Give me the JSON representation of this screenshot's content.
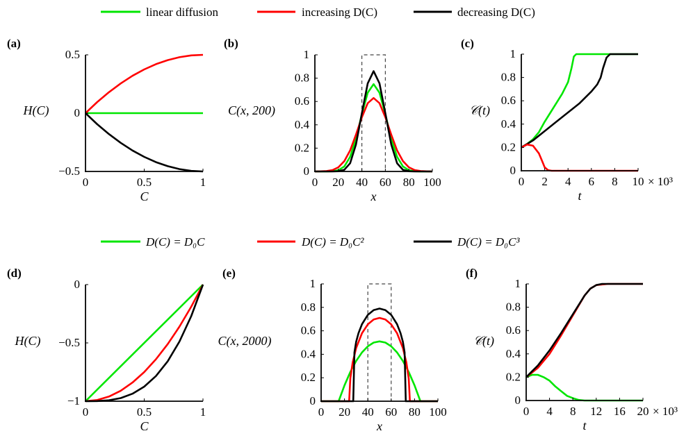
{
  "colors": {
    "green": "#00e600",
    "red": "#ff0000",
    "black": "#000000"
  },
  "legend_top": [
    {
      "label": "linear diffusion",
      "color": "#00e600"
    },
    {
      "label": "increasing D(C)",
      "color": "#ff0000"
    },
    {
      "label": "decreasing D(C)",
      "color": "#000000"
    }
  ],
  "legend_bottom": [
    {
      "label": "D(C) = D₀C",
      "color": "#00e600"
    },
    {
      "label": "D(C) = D₀C²",
      "color": "#ff0000"
    },
    {
      "label": "D(C) = D₀C³",
      "color": "#000000"
    }
  ],
  "chart_data": [
    {
      "panel": "(a)",
      "type": "line",
      "xlabel": "C",
      "ylabel": "H(C)",
      "xlim": [
        0,
        1
      ],
      "ylim": [
        -0.5,
        0.5
      ],
      "xticks": [
        0,
        0.5,
        1
      ],
      "xtick_labels": [
        "0",
        "0.5",
        "1"
      ],
      "yticks": [
        -0.5,
        0,
        0.5
      ],
      "ytick_labels": [
        "−0.5",
        "0",
        "0.5"
      ],
      "grid": false,
      "series": [
        {
          "color": "#00e600",
          "x": [
            0,
            1
          ],
          "y": [
            0,
            0
          ]
        },
        {
          "color": "#ff0000",
          "x": [
            0,
            0.1,
            0.2,
            0.3,
            0.4,
            0.5,
            0.6,
            0.7,
            0.8,
            0.9,
            1
          ],
          "y": [
            0,
            0.095,
            0.18,
            0.255,
            0.32,
            0.375,
            0.42,
            0.455,
            0.48,
            0.495,
            0.5
          ]
        },
        {
          "color": "#000000",
          "x": [
            0,
            0.1,
            0.2,
            0.3,
            0.4,
            0.5,
            0.6,
            0.7,
            0.8,
            0.9,
            1
          ],
          "y": [
            0,
            -0.095,
            -0.18,
            -0.255,
            -0.32,
            -0.375,
            -0.42,
            -0.455,
            -0.48,
            -0.495,
            -0.5
          ]
        }
      ]
    },
    {
      "panel": "(b)",
      "type": "line",
      "xlabel": "x",
      "ylabel": "C(x, 200)",
      "xlim": [
        0,
        100
      ],
      "ylim": [
        0,
        1
      ],
      "xticks": [
        0,
        20,
        40,
        60,
        80,
        100
      ],
      "xtick_labels": [
        "0",
        "20",
        "40",
        "60",
        "80",
        "100"
      ],
      "yticks": [
        0,
        0.2,
        0.4,
        0.6,
        0.8,
        1
      ],
      "ytick_labels": [
        "0",
        "0.2",
        "0.4",
        "0.6",
        "0.8",
        "1"
      ],
      "grid": false,
      "initial_box": {
        "x": [
          40,
          60
        ],
        "height": 1
      },
      "series": [
        {
          "color": "#00e600",
          "x": [
            0,
            10,
            15,
            20,
            25,
            30,
            35,
            40,
            45,
            50,
            55,
            60,
            65,
            70,
            75,
            80,
            85,
            90,
            100
          ],
          "y": [
            0,
            0.0003,
            0.002,
            0.0105,
            0.042,
            0.125,
            0.28,
            0.49,
            0.675,
            0.749,
            0.675,
            0.49,
            0.28,
            0.125,
            0.042,
            0.0105,
            0.002,
            0.0003,
            0
          ]
        },
        {
          "color": "#ff0000",
          "x": [
            0,
            5,
            10,
            15,
            20,
            25,
            30,
            35,
            40,
            45,
            50,
            55,
            60,
            65,
            70,
            75,
            80,
            85,
            90,
            95,
            100
          ],
          "y": [
            0.0002,
            0.001,
            0.0035,
            0.012,
            0.036,
            0.088,
            0.18,
            0.315,
            0.464,
            0.585,
            0.63,
            0.585,
            0.464,
            0.315,
            0.18,
            0.088,
            0.036,
            0.012,
            0.0035,
            0.001,
            0.0002
          ]
        },
        {
          "color": "#000000",
          "x": [
            0,
            15,
            20,
            25,
            30,
            35,
            40,
            45,
            50,
            55,
            60,
            65,
            70,
            75,
            80,
            85,
            100
          ],
          "y": [
            0,
            0,
            0.0015,
            0.0135,
            0.07,
            0.231,
            0.4985,
            0.755,
            0.86,
            0.755,
            0.4985,
            0.231,
            0.07,
            0.0135,
            0.0015,
            0,
            0
          ]
        }
      ]
    },
    {
      "panel": "(c)",
      "type": "line",
      "xlabel": "t",
      "ylabel": "𝒞(t)",
      "xlim": [
        0,
        10
      ],
      "ylim": [
        0,
        1
      ],
      "x_multiplier": "× 10³",
      "xticks": [
        0,
        2,
        4,
        6,
        8,
        10
      ],
      "xtick_labels": [
        "0",
        "2",
        "4",
        "6",
        "8",
        "10"
      ],
      "yticks": [
        0,
        0.2,
        0.4,
        0.6,
        0.8,
        1
      ],
      "ytick_labels": [
        "0",
        "0.2",
        "0.4",
        "0.6",
        "0.8",
        "1"
      ],
      "grid": false,
      "series": [
        {
          "color": "#00e600",
          "x": [
            0,
            0.5,
            1,
            1.5,
            2,
            2.5,
            3,
            3.5,
            4,
            4.3,
            4.5,
            4.7,
            10
          ],
          "y": [
            0.2,
            0.23,
            0.27,
            0.33,
            0.42,
            0.5,
            0.58,
            0.66,
            0.76,
            0.88,
            0.98,
            1,
            1
          ]
        },
        {
          "color": "#000000",
          "x": [
            0,
            1,
            2,
            3,
            4,
            5,
            6,
            6.5,
            6.8,
            7,
            7.3,
            7.6,
            10
          ],
          "y": [
            0.2,
            0.26,
            0.34,
            0.42,
            0.5,
            0.58,
            0.68,
            0.74,
            0.8,
            0.88,
            0.97,
            1,
            1
          ]
        },
        {
          "color": "#ff0000",
          "x": [
            0,
            0.5,
            1,
            1.5,
            1.8,
            2,
            2.3,
            2.6,
            10
          ],
          "y": [
            0.2,
            0.225,
            0.215,
            0.15,
            0.08,
            0.03,
            0.005,
            0,
            0
          ]
        }
      ]
    },
    {
      "panel": "(d)",
      "type": "line",
      "xlabel": "C",
      "ylabel": "H(C)",
      "xlim": [
        0,
        1
      ],
      "ylim": [
        -1,
        0
      ],
      "xticks": [
        0,
        0.5,
        1
      ],
      "xtick_labels": [
        "0",
        "0.5",
        "1"
      ],
      "yticks": [
        -1,
        -0.5,
        0
      ],
      "ytick_labels": [
        "−1",
        "−0.5",
        "0"
      ],
      "grid": false,
      "series": [
        {
          "color": "#00e600",
          "x": [
            0,
            1
          ],
          "y": [
            -1,
            0
          ]
        },
        {
          "color": "#ff0000",
          "x": [
            0,
            0.1,
            0.2,
            0.3,
            0.4,
            0.5,
            0.6,
            0.7,
            0.8,
            0.9,
            1
          ],
          "y": [
            -1,
            -0.99,
            -0.96,
            -0.91,
            -0.84,
            -0.75,
            -0.64,
            -0.51,
            -0.36,
            -0.19,
            0
          ]
        },
        {
          "color": "#000000",
          "x": [
            0,
            0.1,
            0.2,
            0.3,
            0.4,
            0.5,
            0.6,
            0.7,
            0.8,
            0.9,
            1
          ],
          "y": [
            -1,
            -0.999,
            -0.992,
            -0.973,
            -0.936,
            -0.875,
            -0.784,
            -0.657,
            -0.488,
            -0.271,
            0
          ]
        }
      ]
    },
    {
      "panel": "(e)",
      "type": "line",
      "xlabel": "x",
      "ylabel": "C(x, 2000)",
      "xlim": [
        0,
        100
      ],
      "ylim": [
        0,
        1
      ],
      "xticks": [
        0,
        20,
        40,
        60,
        80,
        100
      ],
      "xtick_labels": [
        "0",
        "20",
        "40",
        "60",
        "80",
        "100"
      ],
      "yticks": [
        0,
        0.2,
        0.4,
        0.6,
        0.8,
        1
      ],
      "ytick_labels": [
        "0",
        "0.2",
        "0.4",
        "0.6",
        "0.8",
        "1"
      ],
      "grid": false,
      "initial_box": {
        "x": [
          40,
          60
        ],
        "height": 1
      },
      "series": [
        {
          "color": "#00e600",
          "x": [
            0,
            15,
            20,
            25,
            30,
            35,
            40,
            45,
            50,
            55,
            60,
            65,
            70,
            75,
            80,
            85,
            100
          ],
          "y": [
            0,
            0,
            0.135,
            0.25,
            0.343,
            0.416,
            0.468,
            0.5,
            0.51,
            0.5,
            0.468,
            0.416,
            0.343,
            0.25,
            0.135,
            0,
            0
          ]
        },
        {
          "color": "#ff0000",
          "x": [
            0,
            24,
            25,
            27,
            30,
            35,
            40,
            45,
            50,
            55,
            60,
            65,
            70,
            73,
            75,
            76,
            100
          ],
          "y": [
            0,
            0,
            0.195,
            0.331,
            0.454,
            0.58,
            0.655,
            0.697,
            0.71,
            0.697,
            0.655,
            0.58,
            0.454,
            0.331,
            0.195,
            0,
            0
          ]
        },
        {
          "color": "#000000",
          "x": [
            0,
            27.5,
            28.5,
            30,
            32,
            35,
            40,
            45,
            50,
            55,
            60,
            65,
            68,
            70,
            71.5,
            72.5,
            100
          ],
          "y": [
            0,
            0,
            0.416,
            0.507,
            0.581,
            0.657,
            0.736,
            0.777,
            0.79,
            0.777,
            0.736,
            0.657,
            0.581,
            0.507,
            0.416,
            0,
            0
          ]
        }
      ]
    },
    {
      "panel": "(f)",
      "type": "line",
      "xlabel": "t",
      "ylabel": "𝒞(t)",
      "xlim": [
        0,
        20
      ],
      "ylim": [
        0,
        1
      ],
      "x_multiplier": "× 10³",
      "xticks": [
        0,
        4,
        8,
        12,
        16,
        20
      ],
      "xtick_labels": [
        "0",
        "4",
        "8",
        "12",
        "16",
        "20"
      ],
      "yticks": [
        0,
        0.2,
        0.4,
        0.6,
        0.8,
        1
      ],
      "ytick_labels": [
        "0",
        "0.2",
        "0.4",
        "0.6",
        "0.8",
        "1"
      ],
      "grid": false,
      "series": [
        {
          "color": "#00e600",
          "x": [
            0,
            1,
            2,
            3,
            4,
            5,
            6,
            7,
            8,
            9,
            10,
            20
          ],
          "y": [
            0.2,
            0.22,
            0.22,
            0.2,
            0.17,
            0.12,
            0.08,
            0.04,
            0.02,
            0.005,
            0,
            0
          ]
        },
        {
          "color": "#ff0000",
          "x": [
            0,
            2,
            4,
            6,
            8,
            10,
            11,
            12,
            14,
            20
          ],
          "y": [
            0.2,
            0.28,
            0.4,
            0.56,
            0.73,
            0.9,
            0.96,
            0.99,
            1,
            1
          ]
        },
        {
          "color": "#000000",
          "x": [
            0,
            2,
            4,
            6,
            8,
            10,
            11,
            12,
            13,
            20
          ],
          "y": [
            0.2,
            0.3,
            0.43,
            0.58,
            0.74,
            0.9,
            0.96,
            0.99,
            1,
            1
          ]
        }
      ]
    }
  ]
}
